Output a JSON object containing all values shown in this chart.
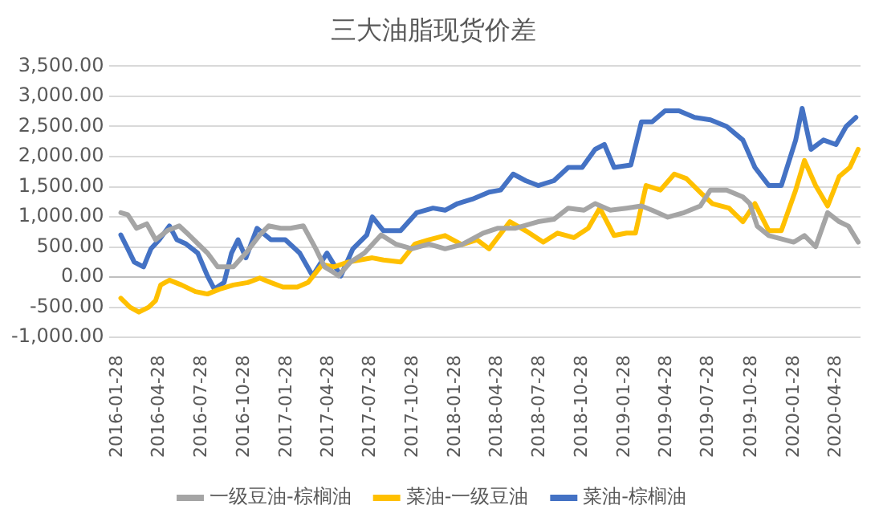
{
  "chart_data": {
    "type": "line",
    "title": "三大油脂现货价差",
    "series": [
      {
        "name": "一级豆油-棕榈油",
        "color": "#a5a5a5",
        "x": [
          "2016-02-05",
          "2016-02-20",
          "2016-03-10",
          "2016-04-01",
          "2016-04-20",
          "2016-05-15",
          "2016-06-10",
          "2016-07-01",
          "2016-08-10",
          "2016-09-01",
          "2016-10-05",
          "2016-11-01",
          "2016-12-01",
          "2016-12-20",
          "2017-01-15",
          "2017-02-05",
          "2017-03-05",
          "2017-04-01",
          "2017-04-20",
          "2017-05-05",
          "2017-05-20",
          "2017-06-15",
          "2017-07-15",
          "2017-08-20",
          "2017-09-20",
          "2017-10-25",
          "2017-12-01",
          "2018-01-05",
          "2018-02-10",
          "2018-03-28",
          "2018-04-28",
          "2018-06-05",
          "2018-07-25",
          "2018-08-28",
          "2018-09-28",
          "2018-11-01",
          "2018-11-25",
          "2018-12-28",
          "2019-02-01",
          "2019-03-05",
          "2019-03-28",
          "2019-05-01",
          "2019-06-05",
          "2019-07-10",
          "2019-08-01",
          "2019-09-05",
          "2019-10-10",
          "2019-10-25",
          "2019-11-10",
          "2019-12-05",
          "2020-01-28",
          "2020-02-20",
          "2020-03-15",
          "2020-04-10",
          "2020-05-05",
          "2020-05-25",
          "2020-06-15"
        ],
        "values": [
          1070,
          1035,
          810,
          885,
          620,
          770,
          850,
          700,
          400,
          170,
          170,
          400,
          700,
          850,
          810,
          810,
          850,
          470,
          170,
          100,
          20,
          250,
          400,
          700,
          550,
          470,
          550,
          470,
          540,
          730,
          810,
          810,
          920,
          960,
          1145,
          1110,
          1220,
          1110,
          1145,
          1180,
          1110,
          995,
          1070,
          1180,
          1445,
          1445,
          1330,
          1220,
          845,
          690,
          580,
          690,
          505,
          1070,
          920,
          845,
          580
        ]
      },
      {
        "name": "菜油-一级豆油",
        "color": "#ffc000",
        "x": [
          "2016-02-05",
          "2016-02-25",
          "2016-03-15",
          "2016-04-05",
          "2016-04-20",
          "2016-05-01",
          "2016-05-20",
          "2016-06-15",
          "2016-07-15",
          "2016-08-10",
          "2016-09-05",
          "2016-10-05",
          "2016-11-05",
          "2016-12-01",
          "2016-12-25",
          "2017-01-20",
          "2017-02-20",
          "2017-03-15",
          "2017-04-15",
          "2017-05-10",
          "2017-06-10",
          "2017-07-05",
          "2017-08-01",
          "2017-08-25",
          "2017-10-01",
          "2017-11-01",
          "2017-12-01",
          "2018-01-05",
          "2018-02-10",
          "2018-03-15",
          "2018-04-10",
          "2018-05-25",
          "2018-06-28",
          "2018-08-05",
          "2018-09-05",
          "2018-10-10",
          "2018-11-10",
          "2018-12-05",
          "2019-01-05",
          "2019-02-01",
          "2019-02-20",
          "2019-03-15",
          "2019-04-15",
          "2019-05-15",
          "2019-06-10",
          "2019-07-15",
          "2019-08-05",
          "2019-09-10",
          "2019-10-10",
          "2019-11-05",
          "2019-12-05",
          "2020-01-01",
          "2020-02-01",
          "2020-02-20",
          "2020-03-15",
          "2020-04-10",
          "2020-05-05",
          "2020-05-28",
          "2020-06-15"
        ],
        "values": [
          -350,
          -500,
          -580,
          -500,
          -390,
          -130,
          -50,
          -130,
          -240,
          -280,
          -200,
          -130,
          -90,
          -15,
          -90,
          -165,
          -165,
          -90,
          210,
          170,
          250,
          285,
          320,
          285,
          250,
          550,
          620,
          690,
          540,
          620,
          470,
          920,
          770,
          580,
          730,
          655,
          810,
          1145,
          690,
          730,
          730,
          1520,
          1445,
          1710,
          1635,
          1370,
          1220,
          1145,
          920,
          1220,
          770,
          770,
          1445,
          1935,
          1520,
          1180,
          1670,
          1820,
          2120
        ]
      },
      {
        "name": "菜油-棕榈油",
        "color": "#4472c4",
        "x": [
          "2016-02-05",
          "2016-02-20",
          "2016-03-05",
          "2016-03-25",
          "2016-04-10",
          "2016-04-28",
          "2016-05-20",
          "2016-06-05",
          "2016-06-25",
          "2016-07-20",
          "2016-08-10",
          "2016-08-25",
          "2016-09-15",
          "2016-10-01",
          "2016-10-15",
          "2016-11-01",
          "2016-11-25",
          "2016-12-25",
          "2017-01-25",
          "2017-02-25",
          "2017-03-25",
          "2017-04-25",
          "2017-05-25",
          "2017-06-20",
          "2017-07-20",
          "2017-08-01",
          "2017-08-25",
          "2017-10-01",
          "2017-11-05",
          "2017-12-10",
          "2018-01-05",
          "2018-02-01",
          "2018-03-05",
          "2018-04-10",
          "2018-05-05",
          "2018-06-01",
          "2018-06-28",
          "2018-07-25",
          "2018-08-28",
          "2018-09-28",
          "2018-10-28",
          "2018-11-25",
          "2018-12-15",
          "2019-01-05",
          "2019-02-10",
          "2019-03-05",
          "2019-03-28",
          "2019-04-25",
          "2019-05-25",
          "2019-06-28",
          "2019-08-01",
          "2019-09-05",
          "2019-10-10",
          "2019-11-05",
          "2019-12-05",
          "2020-01-01",
          "2020-02-01",
          "2020-02-15",
          "2020-03-05",
          "2020-04-01",
          "2020-04-28",
          "2020-05-20",
          "2020-06-10"
        ],
        "values": [
          700,
          470,
          250,
          170,
          470,
          620,
          850,
          620,
          550,
          400,
          20,
          -200,
          -90,
          400,
          620,
          320,
          810,
          620,
          620,
          400,
          20,
          400,
          20,
          470,
          700,
          1000,
          770,
          770,
          1070,
          1145,
          1110,
          1220,
          1295,
          1410,
          1445,
          1710,
          1600,
          1520,
          1600,
          1820,
          1820,
          2120,
          2200,
          1820,
          1860,
          2575,
          2575,
          2760,
          2760,
          2650,
          2610,
          2500,
          2275,
          1820,
          1520,
          1520,
          2275,
          2800,
          2120,
          2275,
          2200,
          2500,
          2650
        ]
      }
    ],
    "xlim": [
      "2016-01-10",
      "2020-06-20"
    ],
    "xticks": [
      "2016-01-28",
      "2016-04-28",
      "2016-07-28",
      "2016-10-28",
      "2017-01-28",
      "2017-04-28",
      "2017-07-28",
      "2017-10-28",
      "2018-01-28",
      "2018-04-28",
      "2018-07-28",
      "2018-10-28",
      "2019-01-28",
      "2019-04-28",
      "2019-07-28",
      "2019-10-28",
      "2020-01-28",
      "2020-04-28"
    ],
    "ylim": [
      -1000,
      3500
    ],
    "yticks": [
      {
        "value": -1000,
        "label": "-1,000.00"
      },
      {
        "value": -500,
        "label": "-500.00"
      },
      {
        "value": 0,
        "label": "0.00"
      },
      {
        "value": 500,
        "label": "500.00"
      },
      {
        "value": 1000,
        "label": "1,000.00"
      },
      {
        "value": 1500,
        "label": "1,500.00"
      },
      {
        "value": 2000,
        "label": "2,000.00"
      },
      {
        "value": 2500,
        "label": "2,500.00"
      },
      {
        "value": 3000,
        "label": "3,000.00"
      },
      {
        "value": 3500,
        "label": "3,500.00"
      }
    ],
    "grid": "y",
    "legend": "bottom",
    "marker": "none",
    "line_style": "solid"
  }
}
